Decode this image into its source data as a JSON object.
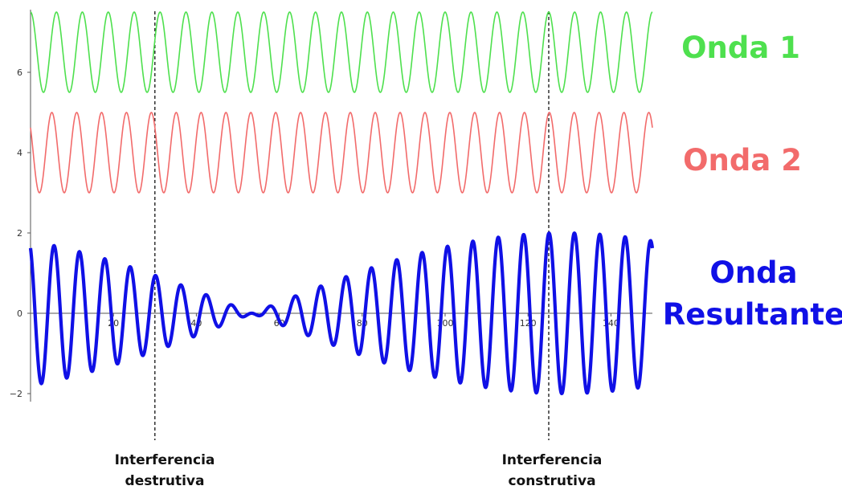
{
  "chart_data": {
    "type": "line",
    "x_range": [
      0,
      150
    ],
    "y_range": [
      -2.3,
      7.5
    ],
    "x_ticks": [
      20,
      40,
      60,
      80,
      100,
      120,
      140
    ],
    "x_tick_labels": [
      "20",
      "40",
      "60",
      "80",
      "100",
      "120",
      "140"
    ],
    "y_ticks": [
      -2,
      0,
      2,
      4,
      6
    ],
    "y_tick_labels": [
      "−2",
      "0",
      "2",
      "4",
      "6"
    ],
    "grid": false,
    "series": [
      {
        "name": "Onda 1",
        "color": "#4ee04e",
        "offset": 6.5,
        "amplitude": 1.0,
        "period": 6.25,
        "phase": 0
      },
      {
        "name": "Onda 2",
        "color": "#f26b6b",
        "offset": 4.0,
        "amplitude": 1.0,
        "period": 6.0,
        "phase": 0.9
      },
      {
        "name": "Onda Resultante",
        "color": "#1010e6",
        "offset": 0,
        "amplitude": 2.0,
        "components": [
          "Onda 1",
          "Onda 2"
        ]
      }
    ],
    "annotations": [
      {
        "x": 30,
        "text": [
          "Interferencia",
          "destrutiva"
        ]
      },
      {
        "x": 125,
        "text": [
          "Interferencia",
          "construtiva"
        ]
      }
    ]
  }
}
